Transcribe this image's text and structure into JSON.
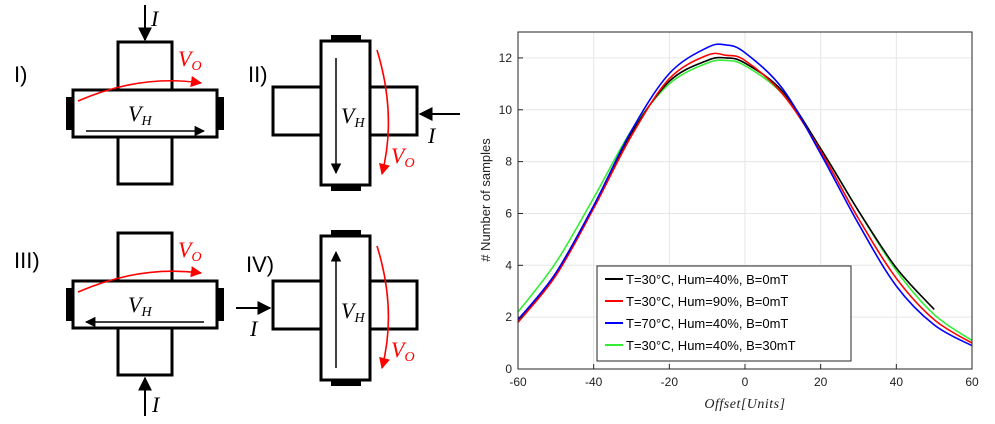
{
  "diagrams": [
    {
      "numeral": "I)",
      "hall_label": "V",
      "hall_sub": "H",
      "out_label": "V",
      "out_sub": "O",
      "current_label": "I"
    },
    {
      "numeral": "II)",
      "hall_label": "V",
      "hall_sub": "H",
      "out_label": "V",
      "out_sub": "O",
      "current_label": "I"
    },
    {
      "numeral": "III)",
      "hall_label": "V",
      "hall_sub": "H",
      "out_label": "V",
      "out_sub": "O",
      "current_label": "I"
    },
    {
      "numeral": "IV)",
      "hall_label": "V",
      "hall_sub": "H",
      "out_label": "V",
      "out_sub": "O",
      "current_label": "I"
    }
  ],
  "colors": {
    "red": "#ff0000",
    "black": "#000000"
  },
  "chart_data": {
    "type": "line",
    "title": "",
    "xlabel": "Offset[Units]",
    "ylabel": "# Number of samples",
    "xlim": [
      -60,
      60
    ],
    "ylim": [
      0,
      13
    ],
    "xticks": [
      "-60",
      "-40",
      "-20",
      "0",
      "20",
      "40",
      "60"
    ],
    "yticks": [
      "0",
      "2",
      "4",
      "6",
      "8",
      "10",
      "12"
    ],
    "grid": true,
    "legend_position": "bottom-center",
    "series": [
      {
        "name": "T=30°C, Hum=40%, B=0mT",
        "color": "#000000",
        "x": [
          -60,
          -50,
          -40,
          -30,
          -20,
          -10,
          -5,
          0,
          10,
          20,
          30,
          40,
          50
        ],
        "y": [
          1.8,
          3.7,
          6.3,
          9.1,
          11.1,
          11.9,
          12.0,
          11.8,
          10.7,
          8.5,
          6.1,
          3.9,
          2.3
        ]
      },
      {
        "name": "T=30°C, Hum=90%, B=0mT",
        "color": "#ff0000",
        "x": [
          -60,
          -50,
          -40,
          -30,
          -20,
          -10,
          -5,
          0,
          10,
          20,
          30,
          40,
          50,
          60
        ],
        "y": [
          1.8,
          3.6,
          6.2,
          9.0,
          11.2,
          12.1,
          12.1,
          11.9,
          10.6,
          8.4,
          5.8,
          3.5,
          1.9,
          1.0
        ]
      },
      {
        "name": "T=70°C, Hum=40%, B=0mT",
        "color": "#0000ff",
        "x": [
          -60,
          -50,
          -40,
          -30,
          -20,
          -10,
          -5,
          0,
          10,
          20,
          30,
          40,
          50,
          60
        ],
        "y": [
          1.9,
          3.7,
          6.3,
          9.2,
          11.4,
          12.4,
          12.5,
          12.2,
          10.8,
          8.3,
          5.6,
          3.2,
          1.7,
          0.9
        ]
      },
      {
        "name": "T=30°C, Hum=40%, B=30mT",
        "color": "#33ee33",
        "x": [
          -60,
          -50,
          -40,
          -30,
          -20,
          -10,
          -5,
          0,
          10,
          20,
          30,
          40,
          50,
          60
        ],
        "y": [
          2.2,
          4.1,
          6.6,
          9.2,
          11.0,
          11.8,
          11.9,
          11.7,
          10.6,
          8.5,
          6.1,
          3.8,
          2.1,
          1.1
        ]
      }
    ]
  }
}
